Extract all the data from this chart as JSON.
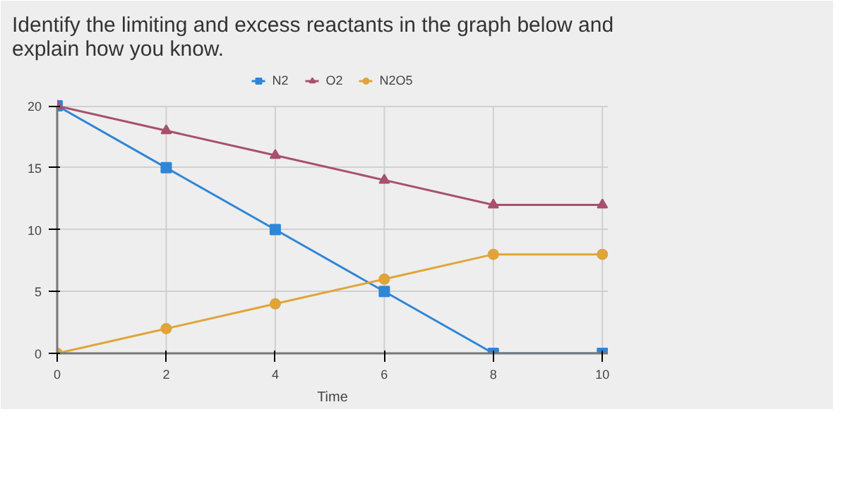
{
  "chart_data": {
    "type": "line",
    "title": "Identify the limiting and excess reactants in the graph below and explain how you know.",
    "xlabel": "Time",
    "x": [
      0,
      2,
      4,
      6,
      8,
      10
    ],
    "series": [
      {
        "name": "N2",
        "color": "#2f86d6",
        "marker": "square",
        "values": [
          20,
          15,
          10,
          5,
          0,
          0
        ]
      },
      {
        "name": "O2",
        "color": "#a8506c",
        "marker": "triangle",
        "values": [
          20,
          18,
          16,
          14,
          12,
          12
        ]
      },
      {
        "name": "N2O5",
        "color": "#e0a43a",
        "marker": "circle",
        "values": [
          0,
          2,
          4,
          6,
          8,
          8
        ]
      }
    ],
    "xlim": [
      0,
      10.1
    ],
    "ylim": [
      0,
      20
    ],
    "xticks": [
      0,
      2,
      4,
      6,
      8,
      10
    ],
    "yticks": [
      0,
      5,
      10,
      15,
      20
    ],
    "grid": true,
    "legend": "top",
    "line_style": "solid"
  }
}
